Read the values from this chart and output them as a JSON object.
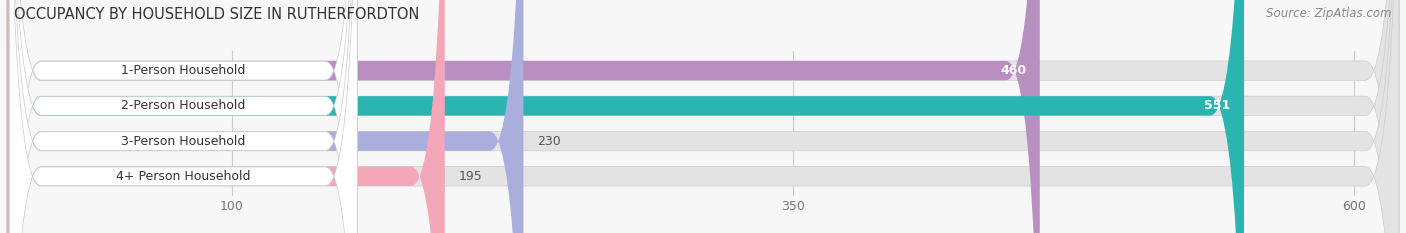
{
  "title": "OCCUPANCY BY HOUSEHOLD SIZE IN RUTHERFORDTON",
  "source": "Source: ZipAtlas.com",
  "categories": [
    "1-Person Household",
    "2-Person Household",
    "3-Person Household",
    "4+ Person Household"
  ],
  "values": [
    460,
    551,
    230,
    195
  ],
  "bar_colors": [
    "#b88fc0",
    "#2ab5b0",
    "#a9aedd",
    "#f4a7b9"
  ],
  "label_colors": [
    "white",
    "white",
    "#555555",
    "#555555"
  ],
  "xticks": [
    100,
    350,
    600
  ],
  "xmax": 620,
  "bar_height": 0.55,
  "background_color": "#f7f7f7",
  "bar_bg_color": "#e3e3e3",
  "title_fontsize": 10.5,
  "label_fontsize": 9,
  "cat_fontsize": 9,
  "tick_fontsize": 9,
  "source_fontsize": 8.5
}
